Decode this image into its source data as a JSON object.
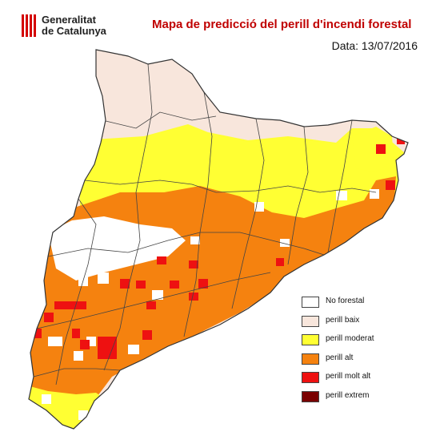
{
  "header": {
    "logo_line1": "Generalitat",
    "logo_line2": "de Catalunya",
    "title": "Mapa de predicció del perill d'incendi forestal",
    "date": "Data: 13/07/2016"
  },
  "colors": {
    "no_forestal": "#ffffff",
    "baix": "#f8e6dc",
    "moderat": "#ffff33",
    "alt": "#f5820f",
    "molt_alt": "#ee1111",
    "extrem": "#7a0000",
    "border": "#444444"
  },
  "legend": {
    "items": [
      {
        "label": "No forestal",
        "color": "#ffffff"
      },
      {
        "label": "perill baix",
        "color": "#f8e6dc"
      },
      {
        "label": "perill moderat",
        "color": "#ffff33"
      },
      {
        "label": "perill alt",
        "color": "#f5820f"
      },
      {
        "label": "perill molt alt",
        "color": "#ee1111"
      },
      {
        "label": "perill extrem",
        "color": "#7a0000"
      }
    ]
  }
}
